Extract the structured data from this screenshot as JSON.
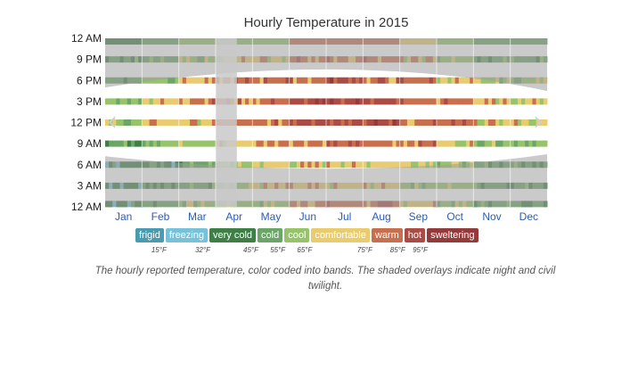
{
  "chart_data": {
    "type": "heatmap",
    "title": "Hourly Temperature in 2015",
    "x_tick_labels": [
      "Jan",
      "Feb",
      "Mar",
      "Apr",
      "May",
      "Jun",
      "Jul",
      "Aug",
      "Sep",
      "Oct",
      "Nov",
      "Dec"
    ],
    "y_tick_labels": [
      "12 AM",
      "9 PM",
      "6 PM",
      "3 PM",
      "12 PM",
      "9 AM",
      "6 AM",
      "3 AM",
      "12 AM"
    ],
    "bands": [
      {
        "name": "frigid",
        "color": "#4b9bb0"
      },
      {
        "name": "freezing",
        "color": "#78c2d9"
      },
      {
        "name": "very cold",
        "color": "#3e7f46"
      },
      {
        "name": "cold",
        "color": "#6ba567"
      },
      {
        "name": "cool",
        "color": "#97c36b"
      },
      {
        "name": "comfortable",
        "color": "#e8cc6f"
      },
      {
        "name": "warm",
        "color": "#c86f4e"
      },
      {
        "name": "hot",
        "color": "#ab4b45"
      },
      {
        "name": "sweltering",
        "color": "#933b3b"
      }
    ],
    "thresholds": [
      "15°F",
      "32°F",
      "45°F",
      "55°F",
      "65°F",
      "75°F",
      "85°F",
      "95°F"
    ],
    "sampled_rows": [
      {
        "hour": 0,
        "bands": [
          "very cold",
          "cold",
          "cool",
          "cool",
          "cool",
          "warm",
          "warm",
          "warm",
          "comfortable",
          "cool",
          "cold",
          "cold"
        ]
      },
      {
        "hour": 3,
        "bands": [
          "very cold",
          "cold",
          "cold",
          "cool",
          "comfortable",
          "comfortable",
          "comfortable",
          "comfortable",
          "cool",
          "cool",
          "cold",
          "cold"
        ]
      },
      {
        "hour": 6,
        "bands": [
          "very cold",
          "very cold",
          "cold",
          "cool",
          "comfortable",
          "comfortable",
          "comfortable",
          "comfortable",
          "comfortable",
          "cool",
          "cold",
          "cold"
        ]
      },
      {
        "hour": 9,
        "bands": [
          "cold",
          "cool",
          "cool",
          "comfortable",
          "warm",
          "warm",
          "warm",
          "warm",
          "warm",
          "comfortable",
          "cool",
          "cool"
        ]
      },
      {
        "hour": 12,
        "bands": [
          "cool",
          "comfortable",
          "comfortable",
          "warm",
          "warm",
          "hot",
          "hot",
          "hot",
          "warm",
          "warm",
          "comfortable",
          "comfortable"
        ]
      },
      {
        "hour": 15,
        "bands": [
          "cool",
          "comfortable",
          "warm",
          "warm",
          "warm",
          "hot",
          "hot",
          "hot",
          "warm",
          "warm",
          "comfortable",
          "comfortable"
        ]
      },
      {
        "hour": 18,
        "bands": [
          "cold",
          "cool",
          "comfortable",
          "warm",
          "warm",
          "warm",
          "hot",
          "warm",
          "warm",
          "comfortable",
          "cool",
          "cool"
        ]
      },
      {
        "hour": 21,
        "bands": [
          "cold",
          "cold",
          "cool",
          "comfortable",
          "comfortable",
          "warm",
          "warm",
          "warm",
          "comfortable",
          "cool",
          "cold",
          "cold"
        ]
      }
    ],
    "night_shading": true,
    "legend_position": "bottom"
  },
  "caption": "The hourly reported temperature, color coded into bands. The shaded overlays indicate night and civil twilight.",
  "nav": {
    "prev_icon": "chevron-left-icon",
    "next_icon": "chevron-right-icon",
    "prev_glyph": "‹",
    "next_glyph": "›"
  }
}
